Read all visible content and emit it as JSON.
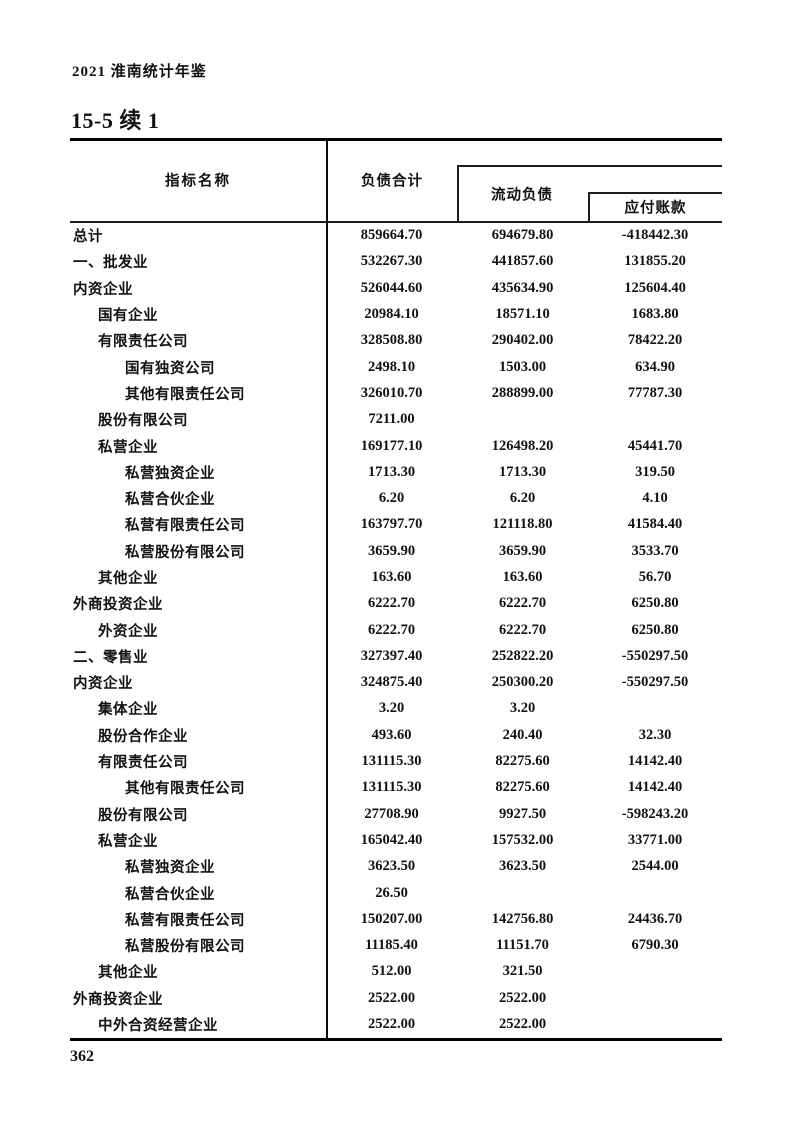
{
  "page": {
    "yearbook_title": "2021 淮南统计年鉴",
    "table_number": "15-5 续 1",
    "page_number": "362"
  },
  "table": {
    "columns": {
      "indicator": "指标名称",
      "total_liabilities": "负债合计",
      "current_liabilities": "流动负债",
      "accounts_payable": "应付账款"
    },
    "rows": [
      {
        "label": "总计",
        "indent": 0,
        "values": [
          "859664.70",
          "694679.80",
          "-418442.30"
        ]
      },
      {
        "label": "一、批发业",
        "indent": 0,
        "values": [
          "532267.30",
          "441857.60",
          "131855.20"
        ]
      },
      {
        "label": "内资企业",
        "indent": 0,
        "values": [
          "526044.60",
          "435634.90",
          "125604.40"
        ]
      },
      {
        "label": "国有企业",
        "indent": 1,
        "values": [
          "20984.10",
          "18571.10",
          "1683.80"
        ]
      },
      {
        "label": "有限责任公司",
        "indent": 1,
        "values": [
          "328508.80",
          "290402.00",
          "78422.20"
        ]
      },
      {
        "label": "国有独资公司",
        "indent": 2,
        "values": [
          "2498.10",
          "1503.00",
          "634.90"
        ]
      },
      {
        "label": "其他有限责任公司",
        "indent": 2,
        "values": [
          "326010.70",
          "288899.00",
          "77787.30"
        ]
      },
      {
        "label": "股份有限公司",
        "indent": 1,
        "values": [
          "7211.00",
          "",
          ""
        ]
      },
      {
        "label": "私营企业",
        "indent": 1,
        "values": [
          "169177.10",
          "126498.20",
          "45441.70"
        ]
      },
      {
        "label": "私营独资企业",
        "indent": 2,
        "values": [
          "1713.30",
          "1713.30",
          "319.50"
        ]
      },
      {
        "label": "私营合伙企业",
        "indent": 2,
        "values": [
          "6.20",
          "6.20",
          "4.10"
        ]
      },
      {
        "label": "私营有限责任公司",
        "indent": 2,
        "values": [
          "163797.70",
          "121118.80",
          "41584.40"
        ]
      },
      {
        "label": "私营股份有限公司",
        "indent": 2,
        "values": [
          "3659.90",
          "3659.90",
          "3533.70"
        ]
      },
      {
        "label": "其他企业",
        "indent": 1,
        "values": [
          "163.60",
          "163.60",
          "56.70"
        ]
      },
      {
        "label": "外商投资企业",
        "indent": 0,
        "values": [
          "6222.70",
          "6222.70",
          "6250.80"
        ]
      },
      {
        "label": "外资企业",
        "indent": 1,
        "values": [
          "6222.70",
          "6222.70",
          "6250.80"
        ]
      },
      {
        "label": "二、零售业",
        "indent": 0,
        "values": [
          "327397.40",
          "252822.20",
          "-550297.50"
        ]
      },
      {
        "label": "内资企业",
        "indent": 0,
        "values": [
          "324875.40",
          "250300.20",
          "-550297.50"
        ]
      },
      {
        "label": "集体企业",
        "indent": 1,
        "values": [
          "3.20",
          "3.20",
          ""
        ]
      },
      {
        "label": "股份合作企业",
        "indent": 1,
        "values": [
          "493.60",
          "240.40",
          "32.30"
        ]
      },
      {
        "label": "有限责任公司",
        "indent": 1,
        "values": [
          "131115.30",
          "82275.60",
          "14142.40"
        ]
      },
      {
        "label": "其他有限责任公司",
        "indent": 2,
        "values": [
          "131115.30",
          "82275.60",
          "14142.40"
        ]
      },
      {
        "label": "股份有限公司",
        "indent": 1,
        "values": [
          "27708.90",
          "9927.50",
          "-598243.20"
        ]
      },
      {
        "label": "私营企业",
        "indent": 1,
        "values": [
          "165042.40",
          "157532.00",
          "33771.00"
        ]
      },
      {
        "label": "私营独资企业",
        "indent": 2,
        "values": [
          "3623.50",
          "3623.50",
          "2544.00"
        ]
      },
      {
        "label": "私营合伙企业",
        "indent": 2,
        "values": [
          "26.50",
          "",
          ""
        ]
      },
      {
        "label": "私营有限责任公司",
        "indent": 2,
        "values": [
          "150207.00",
          "142756.80",
          "24436.70"
        ]
      },
      {
        "label": "私营股份有限公司",
        "indent": 2,
        "values": [
          "11185.40",
          "11151.70",
          "6790.30"
        ]
      },
      {
        "label": "其他企业",
        "indent": 1,
        "values": [
          "512.00",
          "321.50",
          ""
        ]
      },
      {
        "label": "外商投资企业",
        "indent": 0,
        "values": [
          "2522.00",
          "2522.00",
          ""
        ]
      },
      {
        "label": "中外合资经营企业",
        "indent": 1,
        "values": [
          "2522.00",
          "2522.00",
          ""
        ]
      }
    ]
  }
}
